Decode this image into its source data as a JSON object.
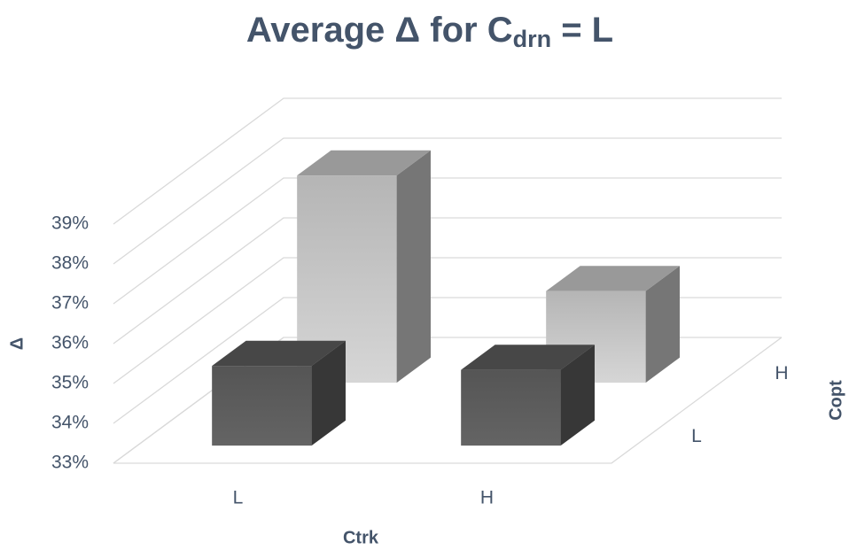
{
  "chart_data": {
    "type": "bar3d",
    "title": [
      "Average Δ for C",
      "drn",
      " = L"
    ],
    "x_label": "Ctrk",
    "y_label": "Δ",
    "z_label": "Copt",
    "categories": [
      "L",
      "H"
    ],
    "series": [
      {
        "name": "L",
        "color": "#595959",
        "values": [
          35.0,
          34.9
        ]
      },
      {
        "name": "H",
        "color": "#bfbfbf",
        "values": [
          38.2,
          35.3
        ]
      }
    ],
    "ylim": [
      33,
      39
    ],
    "yticks": [
      {
        "value": 33,
        "label": "33%"
      },
      {
        "value": 34,
        "label": "34%"
      },
      {
        "value": 35,
        "label": "35%"
      },
      {
        "value": 36,
        "label": "36%"
      },
      {
        "value": 37,
        "label": "37%"
      },
      {
        "value": 38,
        "label": "38%"
      },
      {
        "value": 39,
        "label": "39%"
      }
    ],
    "grid": true
  }
}
